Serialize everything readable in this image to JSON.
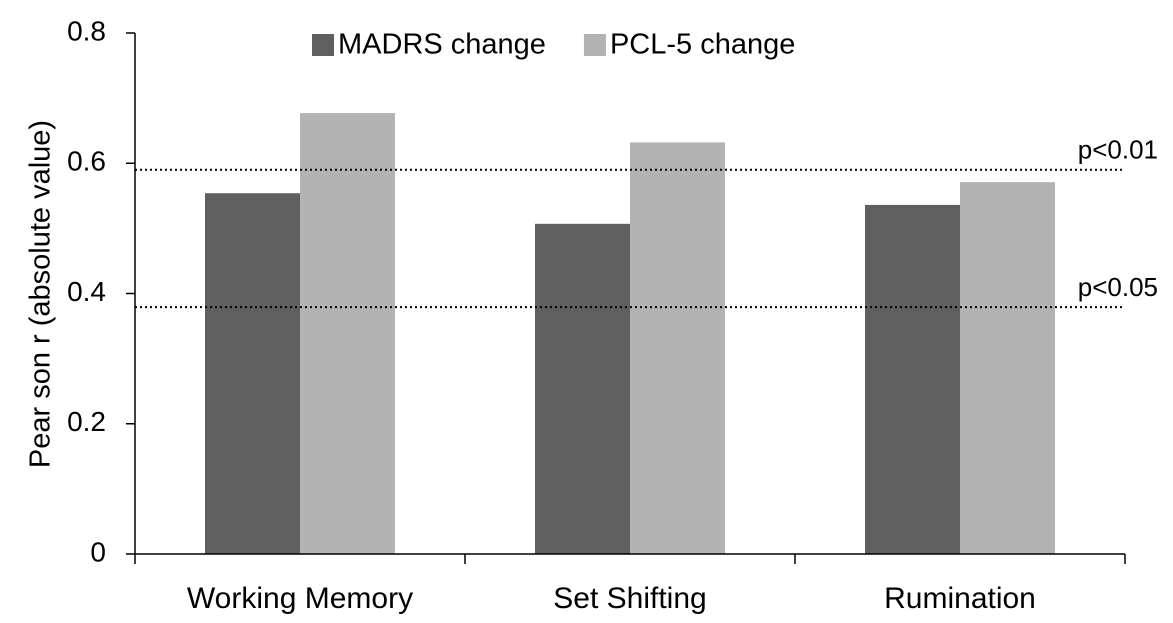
{
  "chart_data": {
    "type": "bar",
    "y_label": "Pear son r (absolute value)",
    "categories": [
      "Working Memory",
      "Set Shifting",
      "Rumination"
    ],
    "series": [
      {
        "name": "MADRS change",
        "color": "#5f5f5f",
        "values": [
          0.554,
          0.507,
          0.536
        ]
      },
      {
        "name": "PCL-5 change",
        "color": "#b3b3b3",
        "values": [
          0.677,
          0.632,
          0.571
        ]
      }
    ],
    "ylim": [
      0,
      0.8
    ],
    "yticks": [
      0,
      0.2,
      0.4,
      0.6,
      0.8
    ],
    "reference_lines": [
      {
        "value": 0.59,
        "label": "p<0.01"
      },
      {
        "value": 0.379,
        "label": "p<0.05"
      }
    ],
    "legend": "top"
  }
}
